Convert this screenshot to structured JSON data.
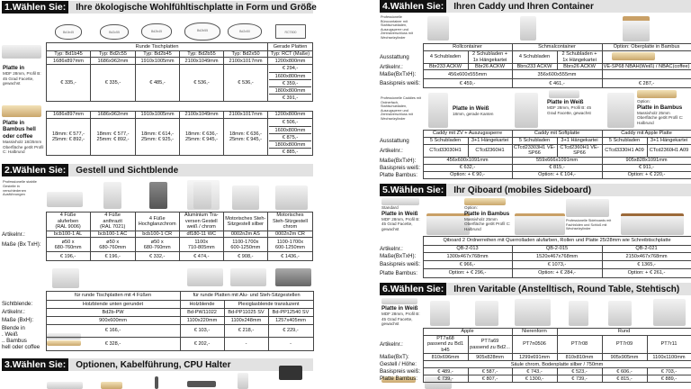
{
  "sections": [
    {
      "num": "1.Wählen Sie:",
      "title": "Ihre ökologische Wohlfühltischplatte in Form und Größe"
    },
    {
      "num": "2.Wählen Sie:",
      "title": "Gestell und Sichtblende"
    },
    {
      "num": "3.Wählen Sie:",
      "title": "Optionen, Kabelführung, CPU Halter"
    },
    {
      "num": "4.Wählen Sie:",
      "title": "Ihren Caddy und Ihren Container"
    },
    {
      "num": "5.Wählen Sie:",
      "title": "Ihr Qiboard (mobiles Sideboard)"
    },
    {
      "num": "6.Wählen Sie:",
      "title": "Ihren Varitable (Anstelltisch, Round Table, Stehtisch)"
    }
  ],
  "shapes": [
    "Bd1b45",
    "Bd2c55",
    "Bd2b45",
    "Bd2b55",
    "Bd2x50",
    "RCT800"
  ],
  "captions": {
    "s1_white_title": "Platte in",
    "s1_white_text": "MDF 28mm, Profil B: 45 Grad Facette, gewachst",
    "s1_bamboo_title": "Platte in Bambus hell oder coffee",
    "s1_bamboo_text": "Massivholz 18/25mm Oberfläche geölt Profil C: Halbrund",
    "s2_intro": "Professionelle stabile Gestelle in verschiedenen Ausführungen",
    "s4_intro1": "Professionelle Bürocontainer mit Stahlschubladen, Auszugsperre und Zentralverschluss mit Wechselzylinder",
    "s4_intro2": "Professionelle Caddies mit Ordnerfach, Stahlschubladen, Auszugsperre und Zentralverschluss mit Wechselzylinder",
    "s4_c1_title": "Platte in Weiß",
    "s4_c1_text": "18mm, gerade Kanten",
    "s4_c2_title": "Platte in Weiß",
    "s4_c2_text": "MDF 28mm, Profil B: 45 Grad Facette, gewachst",
    "s4_c3_pre": "Option:",
    "s4_c3_title": "Platte in Bambus",
    "s4_c3_text": "Massivholz 25mm Oberfläche geölt Profil C: Halbrund",
    "s5_c1_pre": "Standard",
    "s5_c1_title": "Platte in Weiß",
    "s5_c1_text": "MDF 28mm, Profil B: 45 Grad Facette, gewachst",
    "s5_c2_pre": "Option:",
    "s5_c2_title": "Platte in Bambus",
    "s5_c2_text": "Massivholz 25mm Oberfläche geölt Profil C: Halbrund",
    "s5_c3_text": "Professionelle Sideboards mit Fachböden und Schloß mit Wechselzylinder",
    "s6_c1_title": "Platte in Weiß",
    "s6_c1_text": "MDF 28mm, Profil B: 45 Grad Facette, gewachst"
  },
  "tables": {
    "platten_weiss": {
      "labels": [],
      "rows": [
        [
          "Runde Tischplatten",
          "Gerade Platten"
        ],
        [
          "Typ: Bd1b45",
          "Typ: Bd2c55",
          "Typ: Bd2b45",
          "Typ: Bd2b55",
          "Typ: Bd2x50",
          "Typ: RCT (Maße)"
        ],
        [
          "1686x897mm",
          "1686x962mm",
          "1910x1005mm",
          "2100x1049mm",
          "2100x1017mm",
          "1200x800mm"
        ],
        [
          "€ 335,-",
          "€ 335,-",
          "€ 485,-",
          "€ 536,-",
          "€ 536,-",
          [
            "€ 294,-",
            "1600x800mm",
            "€ 359,-",
            "1800x800mm",
            "€ 391,-"
          ]
        ]
      ]
    },
    "platten_bambus": {
      "labels": [],
      "rows": [
        [
          "1686x897mm",
          "1686x962mm",
          "1910x1005mm",
          "2100x1049mm",
          "2100x1017mm",
          "1200x800mm"
        ],
        [
          "18mm: € 577,-\n25mm: € 892,-",
          "18mm: € 577,-\n25mm: € 892,-",
          "18mm: € 614,-\n25mm: € 925,-",
          "18mm: € 636,-\n25mm: € 945,-",
          "18mm: € 636,-\n25mm: € 945,-",
          [
            "€ 506,-",
            "1600x800mm",
            "€ 875,-",
            "1800x800mm",
            "€ 885,-"
          ]
        ]
      ]
    },
    "gestell": {
      "labels": [
        "",
        "Artikelnr.:",
        "Maße (Bx TxH):",
        ""
      ],
      "rows": [
        [
          "4 Füße\naluferben\n(RAL 9006)",
          "4 Füße\nanthrazit\n(RAL 7021)",
          "4 Füße\nHochglanzchrom",
          "Aluminium Tra-\nversen Gestell\nweiß / chrom",
          "Motorisches Steh-\nSitzgestell silber",
          "Motorisches\nSteh-Sitzgestell\nchrom"
        ],
        [
          "bcb100-1 AL",
          "bcb100-1 AC",
          "bcb100-1 CR",
          "df180-11 WC",
          "0002n2m AS",
          "0002n2m CR"
        ],
        [
          "ø50 x\n680-760mm",
          "ø50 x\n680-760mm",
          "ø50 x\n680-760mm",
          "1100x\n710-805mm",
          "1100-1700x\n600-1250mm",
          "1100-1700x\n600-1250mm"
        ],
        [
          "€ 196,-",
          "€ 196,-",
          "€ 332,-",
          "€ 474,-",
          "€ 908,-",
          "€ 1436,-"
        ]
      ]
    },
    "sichtblende": {
      "labels": [
        "",
        "Sichtblende:",
        "Artikelnr.:",
        "Maße (BxH):",
        "Blende in\n. Weiß",
        ".. Bambus\nhell oder coffee"
      ],
      "rows": [
        [
          "für runde Tischplatten mit 4 Füßen",
          "für runde Platten mit Alu- und Steh-Sitzgestellen"
        ],
        [
          "Holzblende unten gerundet",
          "Holzblende",
          "Plexiglasblende transluzent"
        ],
        [
          "Bd2b-PW",
          "Bd-PW11022",
          "Bd-PP11025 SV",
          "Bd-PP12540 SV"
        ],
        [
          "900x600mm",
          "1100x220mm",
          "1100x248mm",
          "1257x405mm"
        ],
        [
          "€ 166,-",
          "€ 103,-",
          "€ 218,-",
          "€ 229,-"
        ],
        [
          "€ 328,-",
          "€ 202,-",
          "-",
          "-"
        ]
      ]
    },
    "container": {
      "labels": [
        "",
        "Ausstattung",
        "Artikelnr.:",
        "Maße(BxTxH):",
        "Basispreis weiß:"
      ],
      "rows": [
        [
          "Rollcontainer",
          "Schmalcontainer",
          "Option: Oberplatte in Bambus"
        ],
        [
          "4 Schubladen",
          "2 Schubladen +\n1x Hängekartei",
          "4 Schubladen",
          "2 Schubladen +\n1x Hängekartei",
          ""
        ],
        [
          "Bbr233 ACKW",
          "Bbr26 ACKW",
          "Bbrs233 ACKW",
          "Bbrs26 ACKW",
          "VE-SP68 NBAH(Weiß) / NBAC(coffee)"
        ],
        [
          "456x600x555mm",
          "356x600x555mm",
          ""
        ],
        [
          "€ 459,-",
          "€ 461,-",
          "€ 287,-"
        ]
      ]
    },
    "caddy": {
      "labels": [
        "",
        "Ausstattung",
        "Artikelnr.:",
        "Maße(BxTxH):",
        "Basispreis weiß:",
        "Platte Bambus:"
      ],
      "rows": [
        [
          "Caddy mit ZV + Auszugssperre",
          "Caddy mit Softplatte",
          "Caddy mit Apple Platte"
        ],
        [
          "5 Schubladen",
          "3+1 Hängekartei",
          "5 Schubladen",
          "3+1 Hängekartei",
          "5 Schubladen",
          "3+1 Hängekartei"
        ],
        [
          "CTcd33030H1",
          "CTcd2360H1",
          "CTcd23303H1 VE-SP66",
          "CTcd2360H1 VE-SP66",
          "CTcd3330H1 A09",
          "CTcd2360H1 A09"
        ],
        [
          "456x600x1091mm",
          "559x666x1091mm",
          "905x828x1091mm"
        ],
        [
          "€ 632,-",
          "€ 815,-",
          "€ 911,-"
        ],
        [
          "Option: + € 90,-",
          "Option: + € 104,-",
          "Option: + € 220,-"
        ]
      ]
    },
    "qiboard": {
      "labels": [
        "",
        "Artikelnr.:",
        "Maße(BxTxH):",
        "Basispreis weiß:",
        "Platte Bambus:"
      ],
      "rows": [
        [
          "Qiboard 2 Ordnerreihen mit Querrolladen alufarben, Rollen und Platte 25/28mm wie Schreibtischplatte"
        ],
        [
          "QB-2-013",
          "QB-2-015",
          "QB-2-021"
        ],
        [
          "1300x467x768mm",
          "1520x467x768mm",
          "2150x467x768mm"
        ],
        [
          "€ 966,-",
          "€ 1073,-",
          "€ 1365,-"
        ],
        [
          "Option: + € 296,-",
          "Option: + € 284,-",
          "Option: + € 261,-"
        ]
      ]
    },
    "varitable": {
      "labels": [
        "",
        "Artikelnr.:",
        "Maße(BxT):",
        "Gestell / Höhe:",
        "Basispreis weiß:",
        "Platte Bambus:"
      ],
      "rows": [
        [
          "Apple",
          "Nierenform",
          "Rund"
        ],
        [
          "PT7a68\npassend zu Bd1 b45",
          "PT7a69\npassend zu Bd2...",
          "PT7n0506",
          "PT7r08",
          "PT7r09",
          "PT7r11"
        ],
        [
          "810x696mm",
          "905x828mm",
          "1299x691mm",
          "810x810mm",
          "905x905mm",
          "1100x1100mm"
        ],
        [
          "Säule chrom, Bodenplatte silber / 750mm"
        ],
        [
          "€ 489,-",
          "€ 587,-",
          "€ 743,-",
          "€ 523,-",
          "€ 606,-",
          "€ 703,-"
        ],
        [
          "€ 739,-",
          "€ 807,-",
          "€ 1300,-",
          "€ 739,-",
          "€ 815,-",
          "€ 889,-"
        ]
      ]
    }
  }
}
